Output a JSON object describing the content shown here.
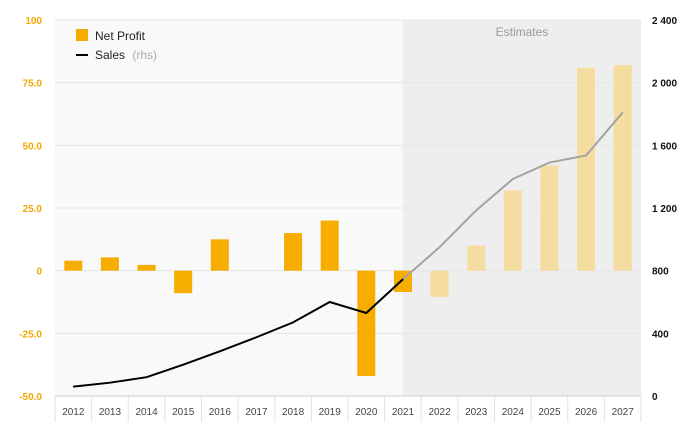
{
  "chart_data": {
    "type": "bar+line",
    "categories": [
      "2012",
      "2013",
      "2014",
      "2015",
      "2016",
      "2017",
      "2018",
      "2019",
      "2020",
      "2021",
      "2022",
      "2023",
      "2024",
      "2025",
      "2026",
      "2027"
    ],
    "series": [
      {
        "name": "Net Profit",
        "type": "bar",
        "axis": "left",
        "values": [
          4,
          5.3,
          2.3,
          -9,
          12.5,
          0,
          15,
          20,
          -42,
          -8.5,
          -10.5,
          10,
          32,
          42,
          81,
          82
        ]
      },
      {
        "name": "Sales",
        "name_suffix": "(rhs)",
        "type": "line",
        "axis": "right",
        "values": [
          60,
          85,
          120,
          200,
          285,
          375,
          470,
          600,
          530,
          745,
          950,
          1185,
          1385,
          1490,
          1535,
          1810
        ]
      }
    ],
    "estimates_label": "Estimates",
    "estimates_from": "2022",
    "left_axis": {
      "ylim": [
        -50,
        100
      ],
      "ticks": [
        "100",
        "75.0",
        "50.0",
        "25.0",
        "0",
        "-25.0",
        "-50.0"
      ],
      "tick_values": [
        100,
        75,
        50,
        25,
        0,
        -25,
        -50
      ]
    },
    "right_axis": {
      "ylim": [
        0,
        2400
      ],
      "ticks": [
        "2 400",
        "2 000",
        "1 600",
        "1 200",
        "800",
        "400",
        "0"
      ],
      "tick_values": [
        2400,
        2000,
        1600,
        1200,
        800,
        400,
        0
      ]
    },
    "grid": true,
    "legend_position": "top-left",
    "colors": {
      "bar_actual": "#f7ad00",
      "bar_estimate": "#f5dca1",
      "line_actual": "#000000",
      "line_estimate": "#a3a3a3",
      "left_tick": "#f0a800",
      "right_tick": "#111111",
      "estimate_bg": "#eeeeee",
      "plot_bg": "#f9f9f9",
      "estimate_text": "#9a9a9a"
    }
  }
}
